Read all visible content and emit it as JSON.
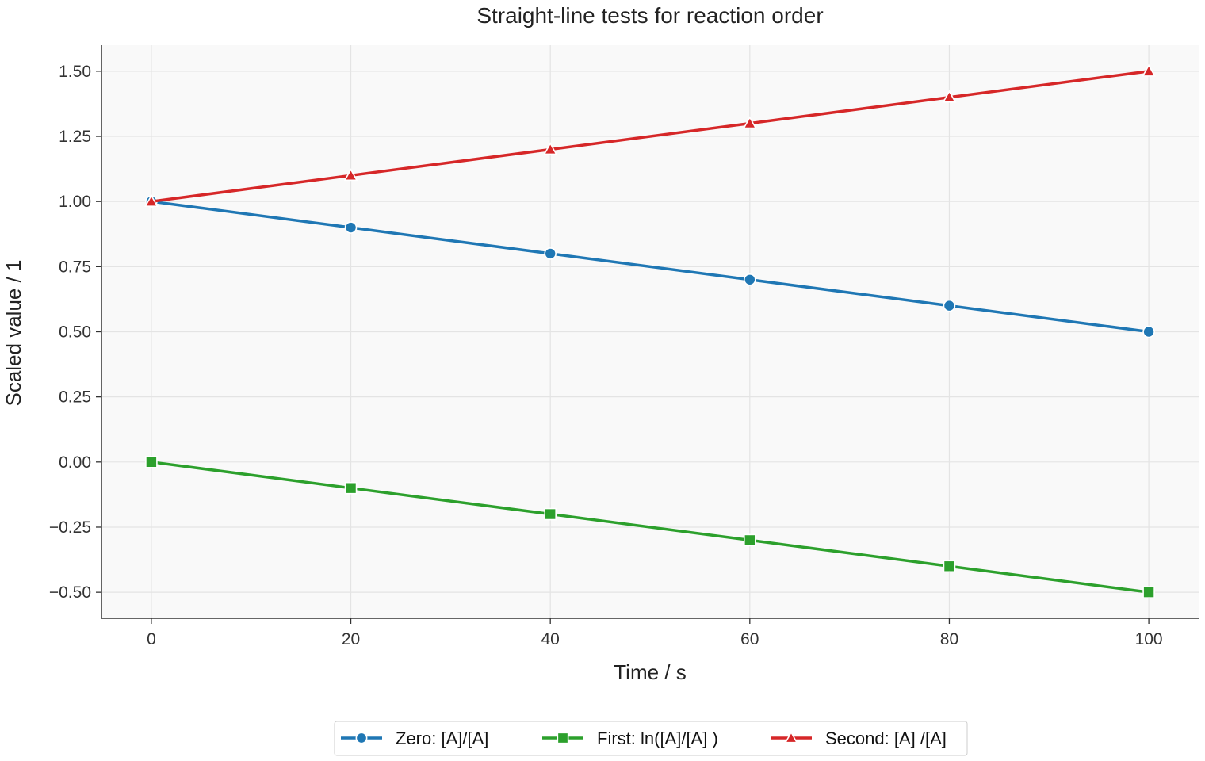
{
  "chart_data": {
    "type": "line",
    "title": "Straight-line tests for reaction order",
    "xlabel": "Time / s",
    "ylabel": "Scaled value / 1",
    "x": [
      0,
      20,
      40,
      60,
      80,
      100
    ],
    "xlim": [
      -5,
      105
    ],
    "ylim": [
      -0.6,
      1.6
    ],
    "xticks": [
      0,
      20,
      40,
      60,
      80,
      100
    ],
    "xtick_labels": [
      "0",
      "20",
      "40",
      "60",
      "80",
      "100"
    ],
    "yticks": [
      -0.5,
      -0.25,
      0,
      0.25,
      0.5,
      0.75,
      1.0,
      1.25,
      1.5
    ],
    "ytick_labels": [
      "−0.50",
      "−0.25",
      "0.00",
      "0.25",
      "0.50",
      "0.75",
      "1.00",
      "1.25",
      "1.50"
    ],
    "grid": true,
    "legend_position": "bottom-center",
    "series": [
      {
        "name": "Zero: [A]/[A]",
        "color": "#1f77b4",
        "marker": "circle",
        "values": [
          1.0,
          0.9,
          0.8,
          0.7,
          0.6,
          0.5
        ]
      },
      {
        "name": "First: ln([A]/[A] )",
        "color": "#2ca02c",
        "marker": "square",
        "values": [
          0.0,
          -0.1,
          -0.2,
          -0.3,
          -0.4,
          -0.5
        ]
      },
      {
        "name": "Second: [A] /[A]",
        "color": "#d62728",
        "marker": "triangle",
        "values": [
          1.0,
          1.1,
          1.2,
          1.3,
          1.4,
          1.5
        ]
      }
    ]
  }
}
